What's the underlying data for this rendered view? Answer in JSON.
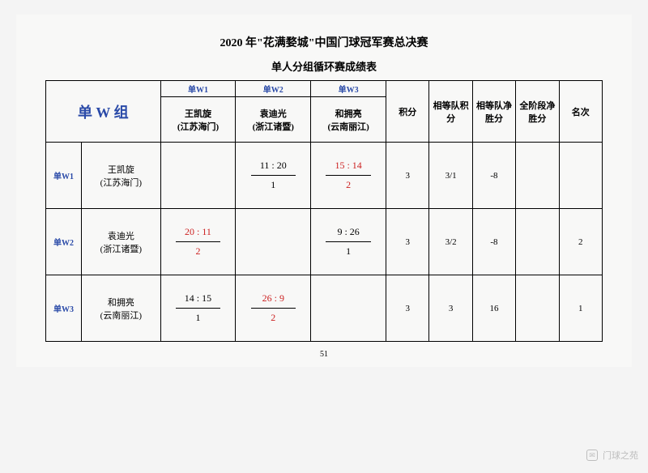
{
  "title": "2020 年\"花满婺城\"中国门球冠军赛总决赛",
  "subtitle": "单人分组循环赛成绩表",
  "page_number": "51",
  "group_label": "单 W 组",
  "column_codes": [
    "单W1",
    "单W2",
    "单W3"
  ],
  "players": [
    {
      "name": "王凯旋",
      "club": "(江苏海门)"
    },
    {
      "name": "袁迪光",
      "club": "(浙江诸暨)"
    },
    {
      "name": "和拥亮",
      "club": "(云南丽江)"
    }
  ],
  "stat_headers": [
    "积分",
    "相等队积 分",
    "相等队净胜分",
    "全阶段净胜分",
    "名次"
  ],
  "rows": [
    {
      "code": "单W1",
      "name": "王凯旋",
      "club": "(江苏海门)",
      "cells": [
        {
          "diag": true
        },
        {
          "score": "11 : 20",
          "sub": "1",
          "red": false
        },
        {
          "score": "15 : 14",
          "sub": "2",
          "red": true
        }
      ],
      "stats": [
        "3",
        "3/1",
        "-8",
        "",
        ""
      ]
    },
    {
      "code": "单W2",
      "name": "袁迪光",
      "club": "(浙江诸暨)",
      "cells": [
        {
          "score": "20 : 11",
          "sub": "2",
          "red": true
        },
        {
          "diag": true
        },
        {
          "score": "9 : 26",
          "sub": "1",
          "red": false
        }
      ],
      "stats": [
        "3",
        "3/2",
        "-8",
        "",
        "2"
      ]
    },
    {
      "code": "单W3",
      "name": "和拥亮",
      "club": "(云南丽江)",
      "cells": [
        {
          "score": "14 : 15",
          "sub": "1",
          "red": false
        },
        {
          "score": "26 : 9",
          "sub": "2",
          "red": true
        },
        {
          "diag": true
        }
      ],
      "stats": [
        "3",
        "3",
        "16",
        "",
        "1"
      ]
    }
  ],
  "watermark": "门球之苑",
  "colors": {
    "accent_blue": "#2a4aa8",
    "accent_red": "#c22",
    "page_bg": "#f8f8f7",
    "body_bg": "#f4f4f4",
    "watermark_gray": "#bdbdbd"
  }
}
